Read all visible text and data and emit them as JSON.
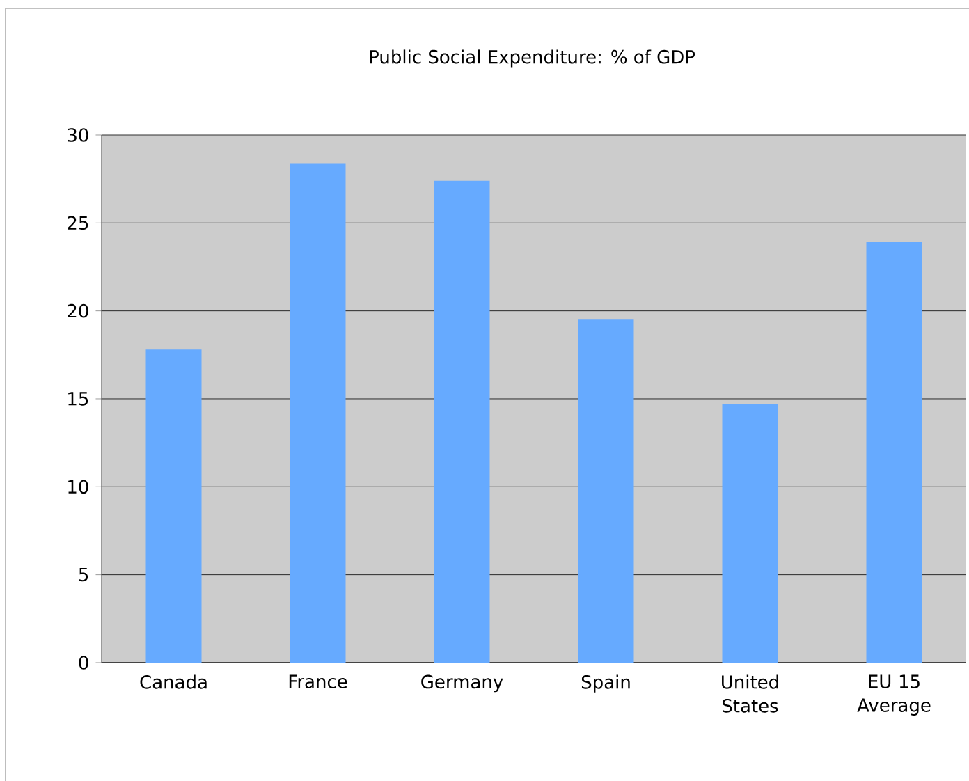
{
  "chart_data": {
    "type": "bar",
    "title": "Public Social Expenditure: % of GDP",
    "categories": [
      "Canada",
      "France",
      "Germany",
      "Spain",
      "United States",
      "EU 15 Average"
    ],
    "values": [
      17.8,
      28.4,
      27.4,
      19.5,
      14.7,
      23.9
    ],
    "color": "#66aaff",
    "ylim": [
      0,
      30
    ],
    "yticks": [
      0,
      5,
      10,
      15,
      20,
      25,
      30
    ],
    "grid": "y"
  }
}
